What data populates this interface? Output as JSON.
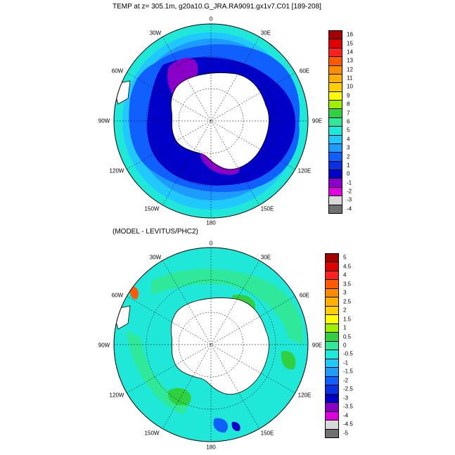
{
  "panels": [
    {
      "title": "TEMP at z= 305.1m, g20a10.G_JRA.RA9091.gx1v7.C01 [189-208]",
      "longitude_labels": [
        "0",
        "30E",
        "60E",
        "90E",
        "120E",
        "150E",
        "180",
        "150W",
        "120W",
        "90W",
        "60W",
        "30W"
      ],
      "colorbar": {
        "labels": [
          "16",
          "15",
          "14",
          "13",
          "12",
          "11",
          "10",
          "9",
          "8",
          "7",
          "6",
          "5",
          "4",
          "3",
          "2",
          "1",
          "0",
          "-1",
          "-2",
          "-3",
          "-4"
        ],
        "colors": [
          "#a50000",
          "#e00000",
          "#ff2020",
          "#ff5a00",
          "#ff8c00",
          "#ffb000",
          "#ffd000",
          "#ffff00",
          "#a0ee00",
          "#30d040",
          "#2fe89a",
          "#20e8d8",
          "#20c8ff",
          "#1e9bff",
          "#1060ff",
          "#0a30e0",
          "#0000c8",
          "#8a00c8",
          "#e000e0",
          "#d8d8d8",
          "#707070"
        ]
      }
    },
    {
      "title": "(MODEL - LEVITUS/PHC2)",
      "longitude_labels": [
        "0",
        "30E",
        "60E",
        "90E",
        "120E",
        "150E",
        "180",
        "150W",
        "120W",
        "90W",
        "60W",
        "30W"
      ],
      "colorbar": {
        "labels": [
          "5",
          "4.5",
          "4",
          "3.5",
          "3",
          "2.5",
          "2",
          "1.5",
          "1",
          "0.5",
          "0",
          "-0.5",
          "-1",
          "-1.5",
          "-2",
          "-2.5",
          "-3",
          "-3.5",
          "-4",
          "-4.5",
          "-5"
        ],
        "colors": [
          "#a50000",
          "#e00000",
          "#ff2020",
          "#ff5a00",
          "#ff8c00",
          "#ffb000",
          "#ffd000",
          "#ffff00",
          "#a0ee00",
          "#30d040",
          "#2fe89a",
          "#20e8d8",
          "#20c8ff",
          "#1e9bff",
          "#1060ff",
          "#0a30e0",
          "#0000c8",
          "#8a00c8",
          "#e000e0",
          "#d8d8d8",
          "#707070"
        ]
      }
    }
  ]
}
